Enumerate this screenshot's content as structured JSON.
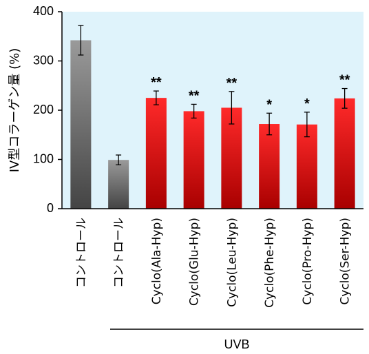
{
  "chart_data": {
    "type": "bar",
    "categories": [
      "コントロール",
      "コントロール",
      "Cyclo(Ala-Hyp)",
      "Cyclo(Glu-Hyp)",
      "Cyclo(Leu-Hyp)",
      "Cyclo(Phe-Hyp)",
      "Cyclo(Pro-Hyp)",
      "Cyclo(Ser-Hyp)"
    ],
    "values": [
      342,
      99,
      225,
      198,
      205,
      172,
      171,
      224
    ],
    "error": [
      30,
      10,
      14,
      14,
      33,
      22,
      25,
      20
    ],
    "annotations": [
      "",
      "",
      "**",
      "**",
      "**",
      "*",
      "*",
      "**"
    ],
    "bar_colors": [
      "gray",
      "gray",
      "red",
      "red",
      "red",
      "red",
      "red",
      "red"
    ],
    "ylabel": "IV型コラーゲン量 (%)",
    "ylim": [
      0,
      400
    ],
    "yticks": [
      "0",
      "100",
      "200",
      "300",
      "400"
    ],
    "group_label": "UVB",
    "group_start_index": 1,
    "plot_background": "#dff3fb",
    "colors": {
      "gray_top": "#9a9a9a",
      "gray_bottom": "#444444",
      "red_top": "#ff2a2a",
      "red_bottom": "#a80000"
    }
  }
}
